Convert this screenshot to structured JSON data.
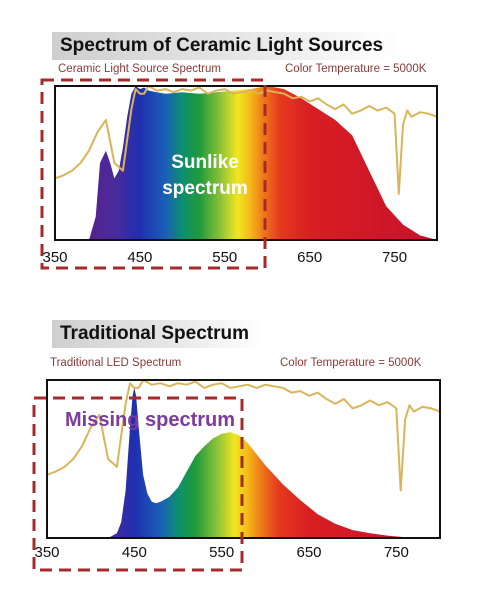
{
  "chart_data": [
    {
      "type": "area",
      "title": "Spectrum of Ceramic Light Sources",
      "subtitle_left": "Ceramic Light Source Spectrum",
      "subtitle_right": "Color Temperature = 5000K",
      "xlim": [
        350,
        800
      ],
      "ylim": [
        0,
        1
      ],
      "x_ticks": [
        350,
        450,
        550,
        650,
        750
      ],
      "annotation": "Sunlike spectrum",
      "annotation_lines": [
        "Sunlike",
        "spectrum"
      ],
      "highlight_range": [
        350,
        590
      ],
      "grid": false,
      "series": [
        {
          "x": [
            350,
            390,
            398,
            403,
            410,
            415,
            420,
            425,
            430,
            435,
            440,
            445,
            450,
            455,
            460,
            470,
            480,
            500,
            520,
            540,
            560,
            580,
            600,
            620,
            640,
            660,
            680,
            700,
            720,
            740,
            760,
            780,
            800
          ],
          "values": [
            0,
            0,
            0.15,
            0.5,
            0.58,
            0.5,
            0.4,
            0.45,
            0.6,
            0.8,
            0.95,
            1.0,
            0.98,
            0.99,
            0.97,
            0.96,
            0.95,
            0.96,
            0.95,
            0.96,
            0.97,
            0.98,
            1.0,
            0.98,
            0.92,
            0.85,
            0.78,
            0.68,
            0.45,
            0.22,
            0.1,
            0.03,
            0
          ]
        },
        {
          "x": [
            350,
            360,
            370,
            380,
            390,
            400,
            410,
            420,
            430,
            440,
            445,
            450,
            455,
            460,
            470,
            480,
            490,
            500,
            510,
            520,
            530,
            540,
            550,
            560,
            570,
            580,
            590,
            600,
            610,
            620,
            630,
            640,
            650,
            660,
            670,
            680,
            690,
            700,
            710,
            720,
            730,
            740,
            750,
            755,
            760,
            765,
            770,
            780,
            790,
            800
          ],
          "values": [
            0.4,
            0.42,
            0.45,
            0.5,
            0.58,
            0.7,
            0.78,
            0.5,
            0.45,
            0.85,
            0.98,
            0.95,
            0.95,
            1.0,
            0.97,
            0.98,
            0.96,
            0.98,
            0.97,
            0.99,
            0.95,
            0.97,
            0.98,
            0.95,
            0.96,
            0.97,
            0.95,
            0.97,
            0.96,
            0.95,
            0.92,
            0.93,
            0.9,
            0.92,
            0.88,
            0.85,
            0.88,
            0.82,
            0.84,
            0.87,
            0.84,
            0.86,
            0.82,
            0.3,
            0.75,
            0.84,
            0.8,
            0.83,
            0.82,
            0.8
          ]
        }
      ]
    },
    {
      "type": "area",
      "title": "Traditional Spectrum",
      "subtitle_left": "Traditional LED Spectrum",
      "subtitle_right": "Color Temperature = 5000K",
      "xlim": [
        350,
        800
      ],
      "ylim": [
        0,
        1
      ],
      "x_ticks": [
        350,
        450,
        550,
        650,
        750
      ],
      "annotation": "Missing spectrum",
      "annotation_lines": [
        "Missing spectrum"
      ],
      "highlight_range": [
        350,
        575
      ],
      "grid": false,
      "series": [
        {
          "x": [
            350,
            420,
            430,
            435,
            440,
            445,
            448,
            450,
            452,
            455,
            460,
            465,
            470,
            475,
            480,
            490,
            500,
            510,
            520,
            530,
            540,
            550,
            560,
            570,
            580,
            590,
            600,
            620,
            640,
            660,
            680,
            700,
            720,
            740,
            760,
            780,
            800
          ],
          "values": [
            0,
            0,
            0.03,
            0.1,
            0.3,
            0.7,
            0.9,
            0.95,
            0.9,
            0.7,
            0.4,
            0.28,
            0.23,
            0.22,
            0.23,
            0.26,
            0.32,
            0.42,
            0.52,
            0.58,
            0.63,
            0.66,
            0.67,
            0.65,
            0.6,
            0.53,
            0.46,
            0.34,
            0.24,
            0.15,
            0.09,
            0.05,
            0.03,
            0.015,
            0.005,
            0,
            0
          ]
        },
        {
          "x": [
            350,
            360,
            370,
            380,
            390,
            400,
            410,
            420,
            430,
            440,
            445,
            450,
            455,
            460,
            470,
            480,
            490,
            500,
            510,
            520,
            530,
            540,
            550,
            560,
            570,
            580,
            590,
            600,
            610,
            620,
            630,
            640,
            650,
            660,
            670,
            680,
            690,
            700,
            710,
            720,
            730,
            740,
            750,
            755,
            760,
            765,
            770,
            780,
            790,
            800
          ],
          "values": [
            0.4,
            0.42,
            0.45,
            0.5,
            0.58,
            0.7,
            0.78,
            0.5,
            0.45,
            0.85,
            0.98,
            0.95,
            0.95,
            1.0,
            0.97,
            0.98,
            0.96,
            0.98,
            0.97,
            0.99,
            0.95,
            0.97,
            0.98,
            0.95,
            0.96,
            0.97,
            0.95,
            0.97,
            0.96,
            0.95,
            0.92,
            0.93,
            0.9,
            0.92,
            0.88,
            0.85,
            0.88,
            0.82,
            0.84,
            0.87,
            0.84,
            0.86,
            0.82,
            0.3,
            0.75,
            0.84,
            0.8,
            0.83,
            0.82,
            0.8
          ]
        }
      ]
    }
  ]
}
